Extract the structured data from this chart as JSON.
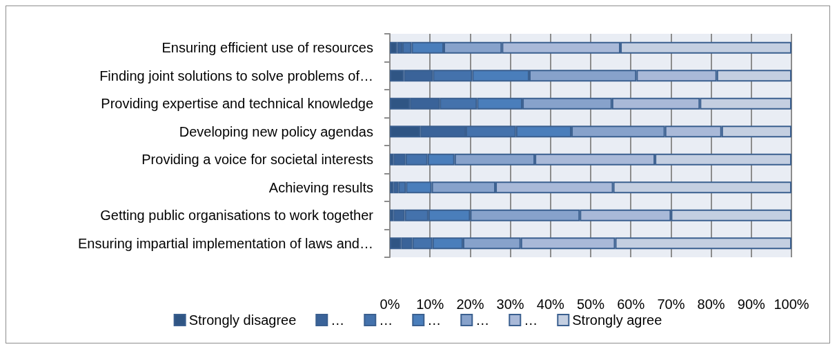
{
  "chart_data": {
    "type": "bar",
    "orientation": "horizontal",
    "stacked": true,
    "categories": [
      "Ensuring efficient use of resources",
      "Finding joint solutions to solve problems of…",
      "Providing expertise and technical knowledge",
      "Developing new policy agendas",
      "Providing a voice for societal interests",
      "Achieving results",
      "Getting public organisations to work together",
      "Ensuring impartial implementation of laws and…"
    ],
    "series": [
      {
        "name": "Strongly disagree",
        "color": "#2f5584",
        "values": [
          1.8,
          3.5,
          5.0,
          7.6,
          0.9,
          0.9,
          0.9,
          2.8
        ]
      },
      {
        "name": "…",
        "color": "#3a6399",
        "values": [
          1.3,
          7.2,
          7.4,
          11.3,
          3.0,
          1.2,
          2.8,
          2.8
        ]
      },
      {
        "name": "…",
        "color": "#4472ac",
        "values": [
          2.3,
          9.8,
          9.3,
          12.5,
          5.5,
          1.9,
          5.9,
          5.0
        ]
      },
      {
        "name": "…",
        "color": "#4a7ebb",
        "values": [
          8.0,
          14.2,
          11.3,
          13.8,
          6.7,
          6.4,
          10.4,
          7.6
        ]
      },
      {
        "name": "…",
        "color": "#87a2cb",
        "values": [
          14.5,
          26.7,
          22.3,
          23.3,
          20.0,
          15.9,
          27.3,
          14.4
        ]
      },
      {
        "name": "…",
        "color": "#a9b9d8",
        "values": [
          29.5,
          20.0,
          21.9,
          14.1,
          29.9,
          29.3,
          22.7,
          23.5
        ]
      },
      {
        "name": "Strongly agree",
        "color": "#c4cfe1",
        "values": [
          42.6,
          18.6,
          22.8,
          17.4,
          34.0,
          44.4,
          30.0,
          43.9
        ]
      }
    ],
    "xlim": [
      0,
      100
    ],
    "xticks": [
      {
        "value": 0,
        "label": "0%"
      },
      {
        "value": 10,
        "label": "10%"
      },
      {
        "value": 20,
        "label": "20%"
      },
      {
        "value": 30,
        "label": "30%"
      },
      {
        "value": 40,
        "label": "40%"
      },
      {
        "value": 50,
        "label": "50%"
      },
      {
        "value": 60,
        "label": "60%"
      },
      {
        "value": 70,
        "label": "70%"
      },
      {
        "value": 80,
        "label": "80%"
      },
      {
        "value": 90,
        "label": "90%"
      },
      {
        "value": 100,
        "label": "100%"
      }
    ],
    "grid": "x",
    "legend": "bottom"
  }
}
